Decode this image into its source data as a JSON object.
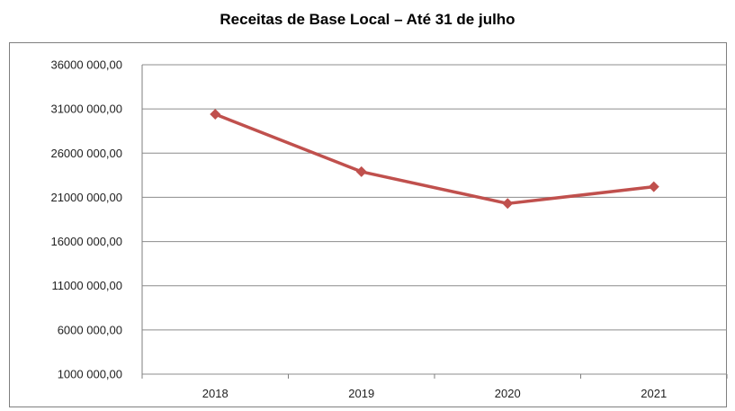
{
  "chart_data": {
    "type": "line",
    "title": "Receitas de Base Local – Até 31 de julho",
    "categories": [
      "2018",
      "2019",
      "2020",
      "2021"
    ],
    "series": [
      {
        "values": [
          30400000,
          23900000,
          20300000,
          22200000
        ],
        "color": "#c0504d"
      }
    ],
    "ylim": [
      1000000,
      36000000
    ],
    "yticks": [
      36000000,
      31000000,
      26000000,
      21000000,
      16000000,
      11000000,
      6000000,
      1000000
    ],
    "ytick_labels": [
      "36000 000,00",
      "31000 000,00",
      "26000 000,00",
      "21000 000,00",
      "16000 000,00",
      "11000 000,00",
      "6000 000,00",
      "1000 000,00"
    ],
    "grid": true,
    "marker": "diamond"
  },
  "colors": {
    "line": "#c0504d",
    "grid": "#8c8c8c",
    "axis": "#7f7f7f"
  }
}
